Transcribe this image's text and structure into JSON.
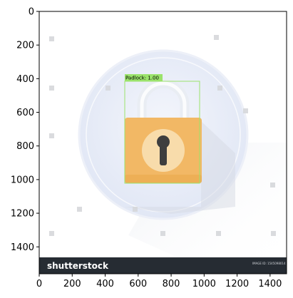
{
  "axes": {
    "x_ticks": [
      0,
      200,
      400,
      600,
      800,
      1000,
      1200,
      1400
    ],
    "y_ticks": [
      0,
      200,
      400,
      600,
      800,
      1000,
      1200,
      1400
    ],
    "x_range": [
      0,
      1500
    ],
    "y_range": [
      1560,
      0
    ],
    "grid": false
  },
  "detection": {
    "label": "Padlock: 1.00",
    "color": "#9be36b",
    "box": {
      "x0": 520,
      "y0": 430,
      "x1": 975,
      "y1": 1050
    }
  },
  "scene": {
    "subject": "padlock-icon",
    "body_color": "#f2b865",
    "shackle_color": "#eceff4",
    "disc_color": "#e6ebf7"
  },
  "watermark": {
    "brand": "shutterstock",
    "footer_color": "#262c33",
    "image_id": "IMAGE ID: 1545098014"
  }
}
